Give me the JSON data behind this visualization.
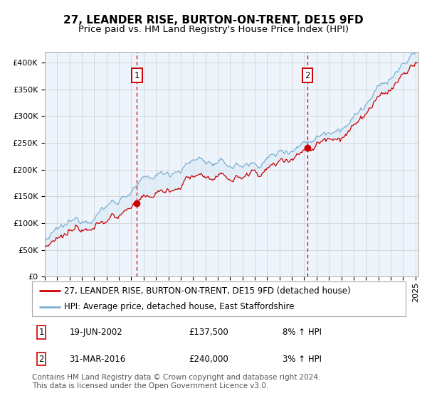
{
  "title": "27, LEANDER RISE, BURTON-ON-TRENT, DE15 9FD",
  "subtitle": "Price paid vs. HM Land Registry's House Price Index (HPI)",
  "ylim": [
    0,
    420000
  ],
  "yticks": [
    0,
    50000,
    100000,
    150000,
    200000,
    250000,
    300000,
    350000,
    400000
  ],
  "ytick_labels": [
    "£0",
    "£50K",
    "£100K",
    "£150K",
    "£200K",
    "£250K",
    "£300K",
    "£350K",
    "£400K"
  ],
  "hpi_color": "#7bafd4",
  "price_color": "#cc0000",
  "fill_color": "#d6e8f5",
  "point1_year": 2002.46,
  "point1_price": 137500,
  "point2_year": 2016.25,
  "point2_price": 240000,
  "legend_line1": "27, LEANDER RISE, BURTON-ON-TRENT, DE15 9FD (detached house)",
  "legend_line2": "HPI: Average price, detached house, East Staffordshire",
  "table_row1": [
    "1",
    "19-JUN-2002",
    "£137,500",
    "8% ↑ HPI"
  ],
  "table_row2": [
    "2",
    "31-MAR-2016",
    "£240,000",
    "3% ↑ HPI"
  ],
  "footnote1": "Contains HM Land Registry data © Crown copyright and database right 2024.",
  "footnote2": "This data is licensed under the Open Government Licence v3.0.",
  "grid_color": "#cccccc",
  "box_color": "#cc0000",
  "title_fontsize": 11,
  "subtitle_fontsize": 9.5,
  "tick_fontsize": 8,
  "legend_fontsize": 8.5,
  "footnote_fontsize": 7.5
}
